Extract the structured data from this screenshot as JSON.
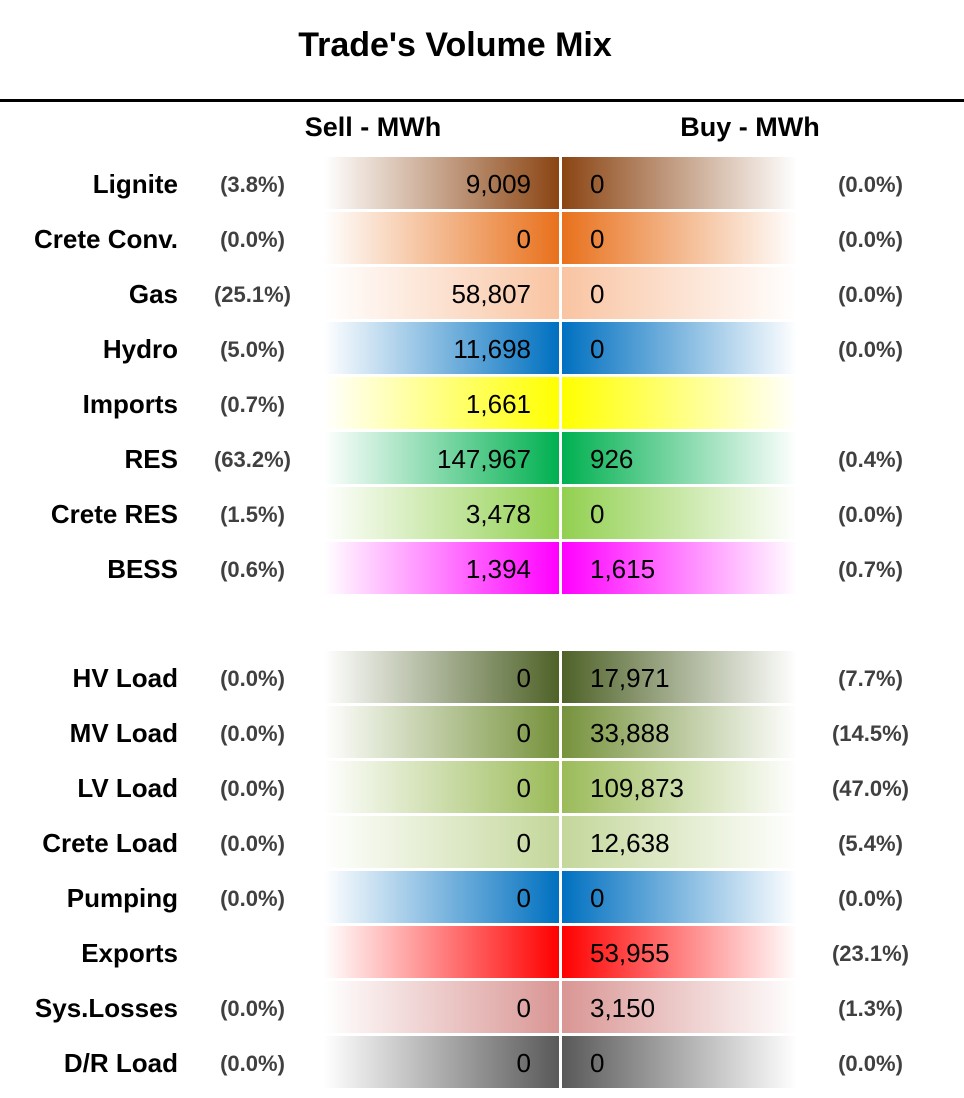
{
  "chart_data": {
    "type": "table",
    "title": "Trade's Volume Mix",
    "columns": [
      "Sell - MWh",
      "Buy - MWh"
    ],
    "groups": [
      {
        "rows": [
          {
            "label": "Lignite",
            "sell": "9,009",
            "sell_pct": "(3.8%)",
            "buy": "0",
            "buy_pct": "(0.0%)",
            "color": "#8B4513"
          },
          {
            "label": "Crete Conv.",
            "sell": "0",
            "sell_pct": "(0.0%)",
            "buy": "0",
            "buy_pct": "(0.0%)",
            "color": "#E8711C"
          },
          {
            "label": "Gas",
            "sell": "58,807",
            "sell_pct": "(25.1%)",
            "buy": "0",
            "buy_pct": "(0.0%)",
            "color": "#F9C4A2"
          },
          {
            "label": "Hydro",
            "sell": "11,698",
            "sell_pct": "(5.0%)",
            "buy": "0",
            "buy_pct": "(0.0%)",
            "color": "#0070C0"
          },
          {
            "label": "Imports",
            "sell": "1,661",
            "sell_pct": "(0.7%)",
            "buy": "",
            "buy_pct": "",
            "color": "#FFFF00"
          },
          {
            "label": "RES",
            "sell": "147,967",
            "sell_pct": "(63.2%)",
            "buy": "926",
            "buy_pct": "(0.4%)",
            "color": "#00B050"
          },
          {
            "label": "Crete RES",
            "sell": "3,478",
            "sell_pct": "(1.5%)",
            "buy": "0",
            "buy_pct": "(0.0%)",
            "color": "#92D050"
          },
          {
            "label": "BESS",
            "sell": "1,394",
            "sell_pct": "(0.6%)",
            "buy": "1,615",
            "buy_pct": "(0.7%)",
            "color": "#FF00FF"
          }
        ]
      },
      {
        "rows": [
          {
            "label": "HV Load",
            "sell": "0",
            "sell_pct": "(0.0%)",
            "buy": "17,971",
            "buy_pct": "(7.7%)",
            "color": "#4F6228"
          },
          {
            "label": "MV Load",
            "sell": "0",
            "sell_pct": "(0.0%)",
            "buy": "33,888",
            "buy_pct": "(14.5%)",
            "color": "#76923C"
          },
          {
            "label": "LV Load",
            "sell": "0",
            "sell_pct": "(0.0%)",
            "buy": "109,873",
            "buy_pct": "(47.0%)",
            "color": "#9BBB59"
          },
          {
            "label": "Crete Load",
            "sell": "0",
            "sell_pct": "(0.0%)",
            "buy": "12,638",
            "buy_pct": "(5.4%)",
            "color": "#C4D79B"
          },
          {
            "label": "Pumping",
            "sell": "0",
            "sell_pct": "(0.0%)",
            "buy": "0",
            "buy_pct": "(0.0%)",
            "color": "#0070C0"
          },
          {
            "label": "Exports",
            "sell": "",
            "sell_pct": "",
            "buy": "53,955",
            "buy_pct": "(23.1%)",
            "color": "#FF0000"
          },
          {
            "label": "Sys.Losses",
            "sell": "0",
            "sell_pct": "(0.0%)",
            "buy": "3,150",
            "buy_pct": "(1.3%)",
            "color": "#D99694"
          },
          {
            "label": "D/R Load",
            "sell": "0",
            "sell_pct": "(0.0%)",
            "buy": "0",
            "buy_pct": "(0.0%)",
            "color": "#595959"
          }
        ]
      }
    ]
  }
}
